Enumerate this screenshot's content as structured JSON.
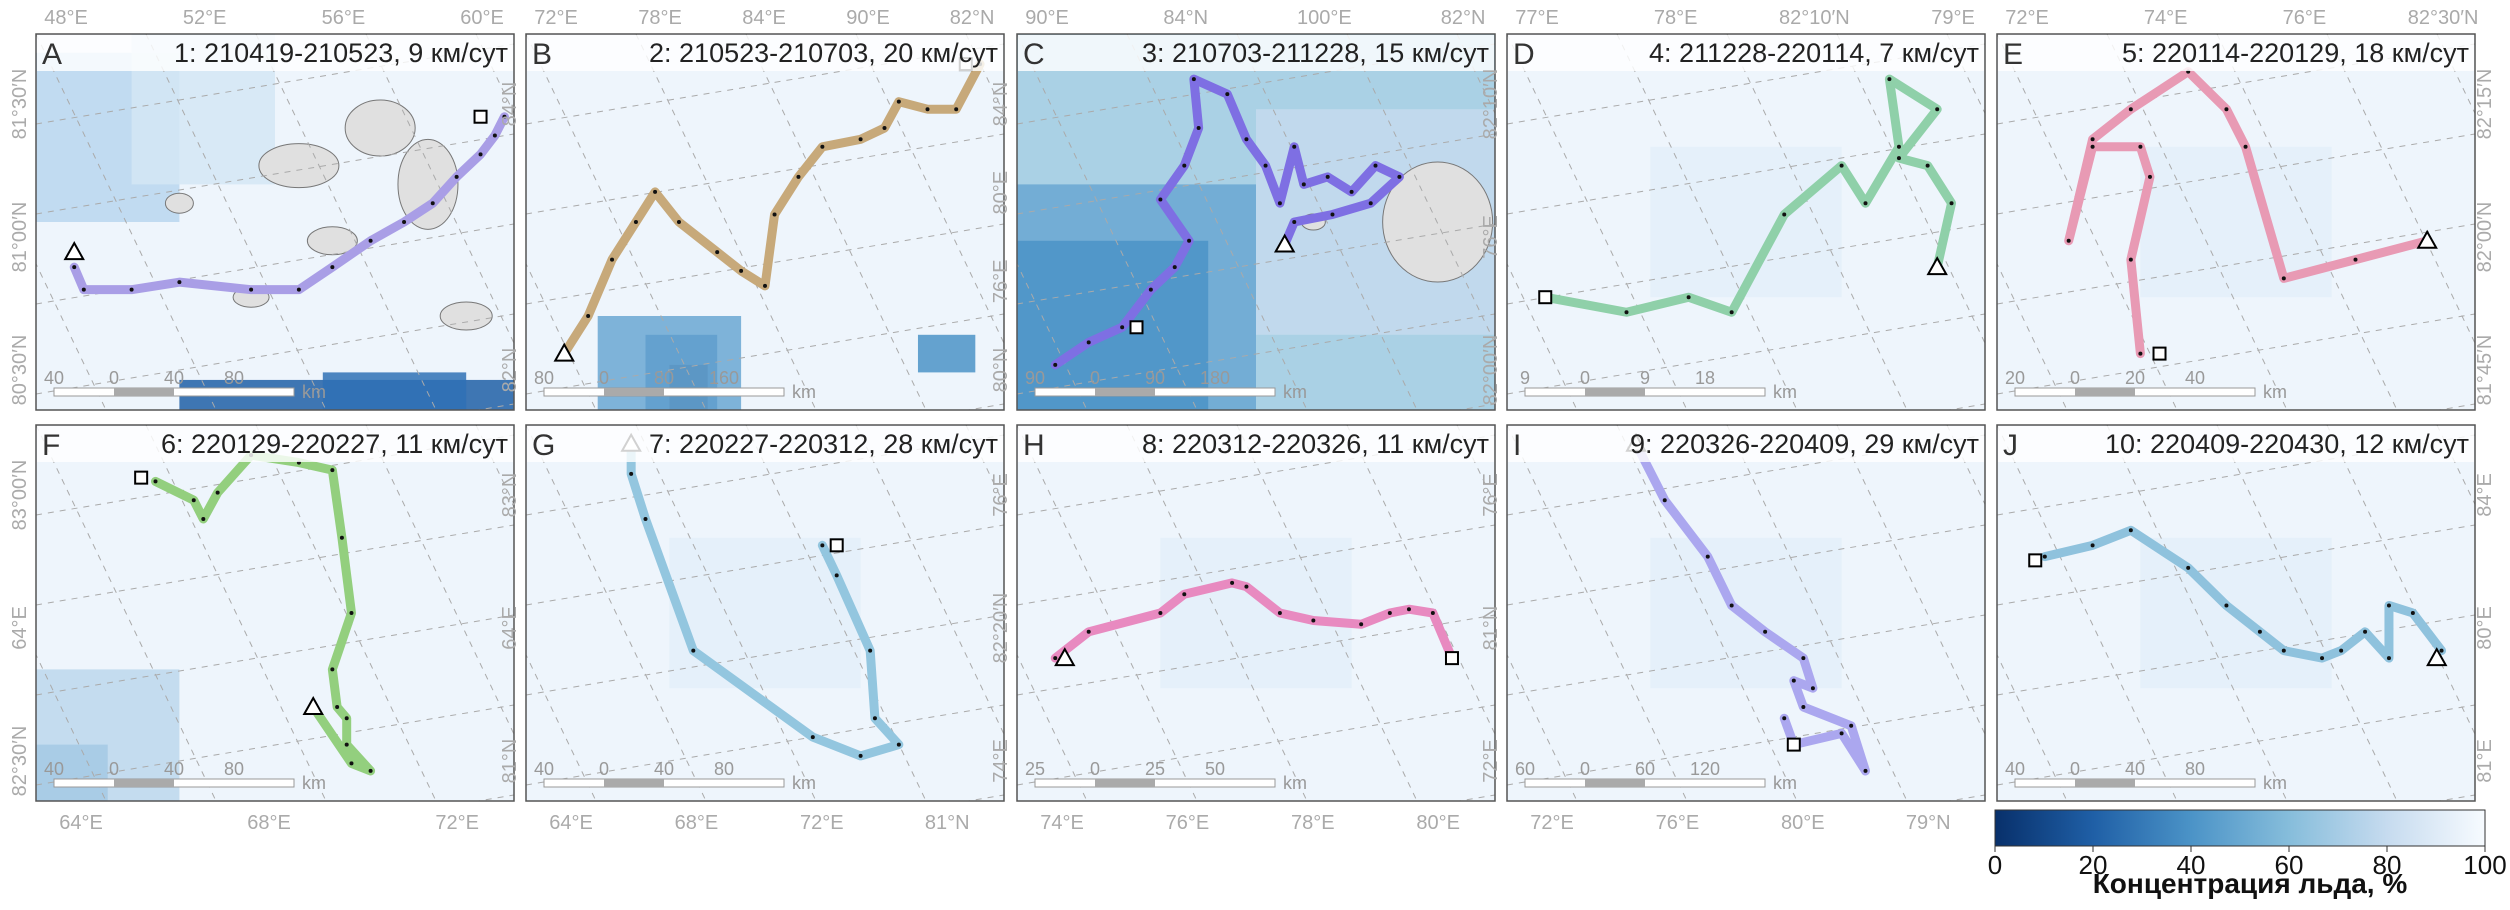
{
  "colorbar": {
    "title": "Концентрация льда, %",
    "ticks": [
      "0",
      "20",
      "40",
      "60",
      "80",
      "100"
    ],
    "color_low": "#08306b",
    "color_high": "#f7fbff"
  },
  "track_marker_legend": {
    "start": "square",
    "end": "triangle"
  },
  "panels": [
    {
      "letter": "A",
      "title": "1: 210419-210523, 9 км/сут",
      "color": "#a99ee6",
      "top_labels": [
        "48°E",
        "52°E",
        "56°E",
        "60°E"
      ],
      "left_labels": [
        "81°30′N",
        "81°00′N",
        "80°30′N"
      ],
      "scale": [
        "40",
        "0",
        "40",
        "80"
      ],
      "scale_unit": "km",
      "ice": "islands"
    },
    {
      "letter": "B",
      "title": "2: 210523-210703, 20 км/сут",
      "color": "#c7a97a",
      "top_labels": [
        "72°E",
        "78°E",
        "84°E",
        "90°E",
        "82°N"
      ],
      "left_labels": [
        "84°N",
        "82°N"
      ],
      "scale": [
        "80",
        "0",
        "80",
        "160"
      ],
      "scale_unit": "km",
      "ice": "low-left"
    },
    {
      "letter": "C",
      "title": "3: 210703-211228, 15 км/сут",
      "color": "#7e6fe3",
      "top_labels": [
        "90°E",
        "84°N",
        "100°E",
        "82°N"
      ],
      "left_labels": [
        "84°N",
        "80°E",
        "76°E",
        "80°N"
      ],
      "scale": [
        "90",
        "0",
        "90",
        "180"
      ],
      "scale_unit": "km",
      "ice": "open"
    },
    {
      "letter": "D",
      "title": "4: 211228-220114, 7 км/сут",
      "color": "#8fd0a9",
      "top_labels": [
        "77°E",
        "78°E",
        "82°10′N",
        "79°E"
      ],
      "left_labels": [
        "82°10′N",
        "76°E",
        "82°00′N"
      ],
      "scale": [
        "9",
        "0",
        "9",
        "18"
      ],
      "scale_unit": "km",
      "ice": "full"
    },
    {
      "letter": "E",
      "title": "5: 220114-220129, 18 км/сут",
      "color": "#e89ab4",
      "top_labels": [
        "72°E",
        "74°E",
        "76°E",
        "82°30′N"
      ],
      "left_labels": [],
      "right_labels": [
        "82°15′N",
        "82°00′N",
        "81°45′N"
      ],
      "scale": [
        "20",
        "0",
        "20",
        "40"
      ],
      "scale_unit": "km",
      "ice": "full"
    },
    {
      "letter": "F",
      "title": "6: 220129-220227, 11 км/сут",
      "color": "#93cf7e",
      "bottom_labels": [
        "64°E",
        "68°E",
        "72°E"
      ],
      "left_labels": [
        "83°00′N",
        "64°E",
        "82°30′N"
      ],
      "scale": [
        "40",
        "0",
        "40",
        "80"
      ],
      "scale_unit": "km",
      "ice": "corner"
    },
    {
      "letter": "G",
      "title": "7: 220227-220312, 28 км/сут",
      "color": "#93c6df",
      "bottom_labels": [
        "64°E",
        "68°E",
        "72°E",
        "81°N"
      ],
      "left_labels": [
        "83°N",
        "64°E",
        "81°N"
      ],
      "scale": [
        "40",
        "0",
        "40",
        "80"
      ],
      "scale_unit": "km",
      "ice": "full"
    },
    {
      "letter": "H",
      "title": "8: 220312-220326, 11 км/сут",
      "color": "#e88ac0",
      "bottom_labels": [
        "74°E",
        "76°E",
        "78°E",
        "80°E"
      ],
      "left_labels": [
        "76°E",
        "82°20′N",
        "74°E"
      ],
      "scale": [
        "25",
        "0",
        "25",
        "50"
      ],
      "scale_unit": "km",
      "ice": "full"
    },
    {
      "letter": "I",
      "title": "9: 220326-220409, 29 км/сут",
      "color": "#aba7ef",
      "bottom_labels": [
        "72°E",
        "76°E",
        "80°E",
        "79°N"
      ],
      "left_labels": [
        "76°E",
        "81°N",
        "72°E"
      ],
      "scale": [
        "60",
        "0",
        "60",
        "120"
      ],
      "scale_unit": "km",
      "ice": "full"
    },
    {
      "letter": "J",
      "title": "10: 220409-220430, 12 км/сут",
      "color": "#8fc2dd",
      "bottom_labels": [],
      "left_labels": [],
      "right_labels": [
        "84°E",
        "80°E",
        "81°E"
      ],
      "scale": [
        "40",
        "0",
        "40",
        "80"
      ],
      "scale_unit": "km",
      "ice": "full"
    }
  ]
}
